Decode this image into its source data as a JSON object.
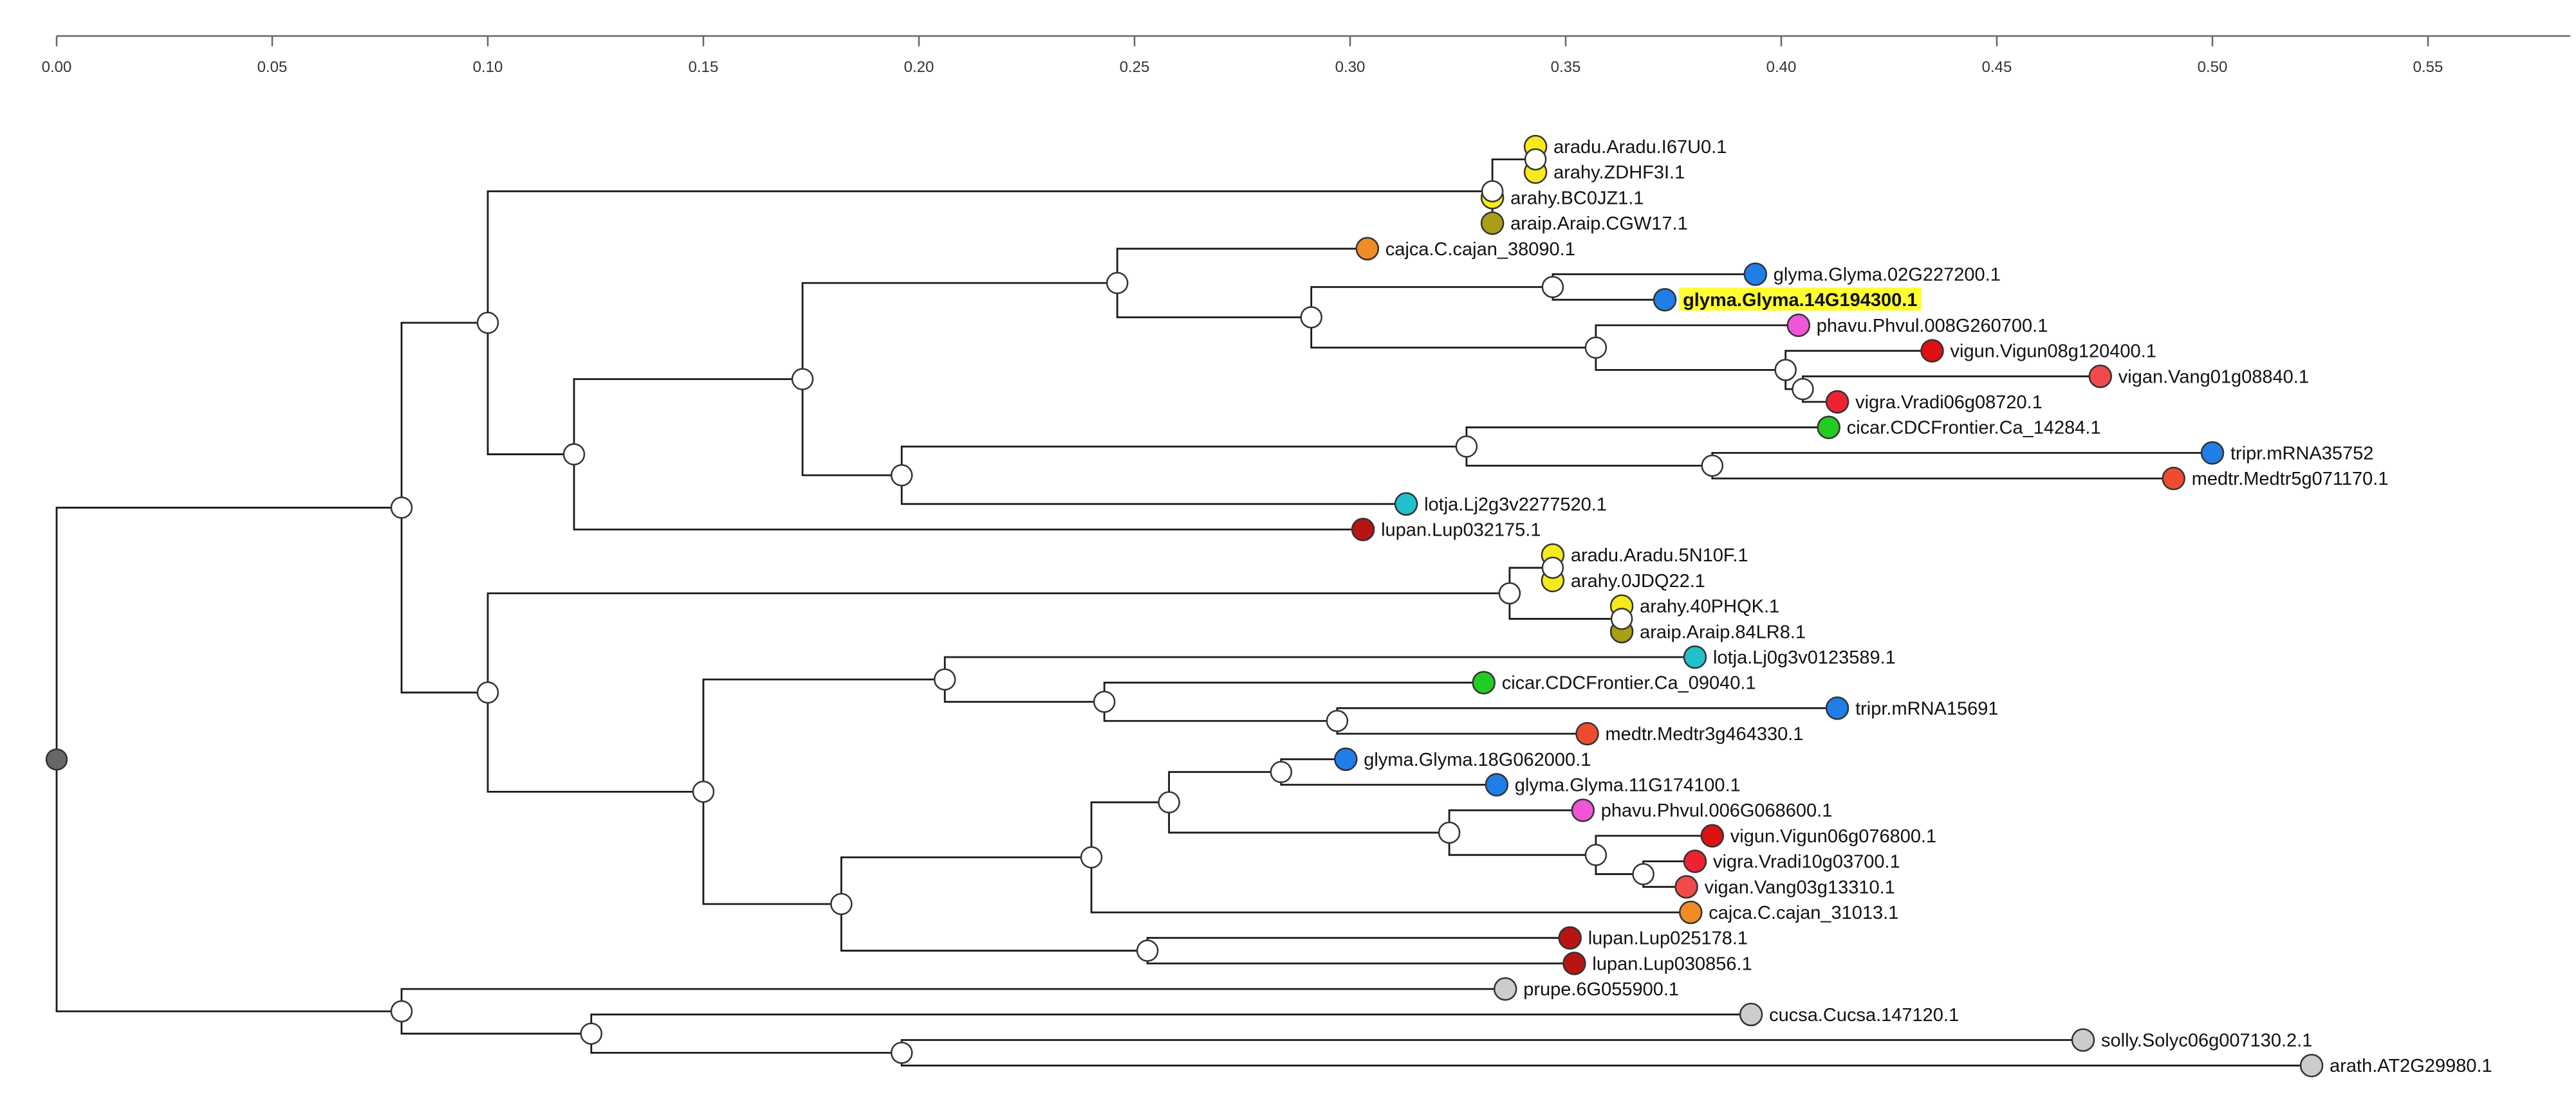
{
  "axis": {
    "ticks": [
      0.0,
      0.05,
      0.1,
      0.15,
      0.2,
      0.25,
      0.3,
      0.35,
      0.4,
      0.45,
      0.5,
      0.55
    ],
    "tick_labels": [
      "0.00",
      "0.05",
      "0.10",
      "0.15",
      "0.20",
      "0.25",
      "0.30",
      "0.35",
      "0.40",
      "0.45",
      "0.50",
      "0.55"
    ],
    "range": [
      0,
      0.58
    ]
  },
  "colors": {
    "aradu": "#f5eb1a",
    "arahy": "#f5eb1a",
    "araip": "#a89f15",
    "cajca": "#f08c24",
    "glyma": "#1f7ee8",
    "phavu": "#ee55d8",
    "vigun": "#dd1111",
    "vigan": "#f24a4a",
    "vigra": "#ee2233",
    "cicar": "#22cc22",
    "tripr": "#1f7ee8",
    "medtr": "#ee4c30",
    "lotja": "#22bfcc",
    "lupan": "#b81414",
    "outgroup": "#cccccc",
    "highlight": "#ffff33"
  },
  "tree": {
    "name": "root",
    "length": 0,
    "children": [
      {
        "name": "n-legumes",
        "length": 0.08,
        "children": [
          {
            "name": "n-cladeA",
            "length": 0.02,
            "children": [
              {
                "name": "n-arachis1",
                "length": 0.233,
                "children": [
                  {
                    "name": "n-ara1a",
                    "length": 0.01,
                    "children": [
                      {
                        "name": "aradu.Aradu.I67U0.1",
                        "length": 0.0,
                        "color": "aradu"
                      },
                      {
                        "name": "arahy.ZDHF3I.1",
                        "length": 0.0,
                        "color": "arahy"
                      }
                    ]
                  },
                  {
                    "name": "arahy.BC0JZ1.1",
                    "length": 0.0,
                    "color": "arahy"
                  },
                  {
                    "name": "araip.Araip.CGW17.1",
                    "length": 0.0,
                    "color": "araip"
                  }
                ]
              },
              {
                "name": "n-A2",
                "length": 0.02,
                "children": [
                  {
                    "name": "n-A3",
                    "length": 0.053,
                    "children": [
                      {
                        "name": "n-A4",
                        "length": 0.073,
                        "children": [
                          {
                            "name": "cajca.C.cajan_38090.1",
                            "length": 0.058,
                            "color": "cajca"
                          },
                          {
                            "name": "n-A5",
                            "length": 0.045,
                            "children": [
                              {
                                "name": "n-A6",
                                "length": 0.056,
                                "children": [
                                  {
                                    "name": "glyma.Glyma.02G227200.1",
                                    "length": 0.047,
                                    "color": "glyma"
                                  },
                                  {
                                    "name": "glyma.Glyma.14G194300.1",
                                    "length": 0.026,
                                    "color": "glyma",
                                    "highlight": true
                                  }
                                ]
                              },
                              {
                                "name": "n-A7",
                                "length": 0.066,
                                "children": [
                                  {
                                    "name": "phavu.Phvul.008G260700.1",
                                    "length": 0.047,
                                    "color": "phavu"
                                  },
                                  {
                                    "name": "n-A8",
                                    "length": 0.044,
                                    "children": [
                                      {
                                        "name": "vigun.Vigun08g120400.1",
                                        "length": 0.034,
                                        "color": "vigun"
                                      },
                                      {
                                        "name": "n-A9",
                                        "length": 0.004,
                                        "children": [
                                          {
                                            "name": "vigan.Vang01g08840.1",
                                            "length": 0.069,
                                            "color": "vigan"
                                          },
                                          {
                                            "name": "vigra.Vradi06g08720.1",
                                            "length": 0.008,
                                            "color": "vigra"
                                          }
                                        ]
                                      }
                                    ]
                                  }
                                ]
                              }
                            ]
                          }
                        ]
                      },
                      {
                        "name": "n-A10",
                        "length": 0.023,
                        "children": [
                          {
                            "name": "n-A11",
                            "length": 0.131,
                            "children": [
                              {
                                "name": "cicar.CDCFrontier.Ca_14284.1",
                                "length": 0.084,
                                "color": "cicar"
                              },
                              {
                                "name": "n-A12",
                                "length": 0.057,
                                "children": [
                                  {
                                    "name": "tripr.mRNA35752",
                                    "length": 0.116,
                                    "color": "tripr"
                                  },
                                  {
                                    "name": "medtr.Medtr5g071170.1",
                                    "length": 0.107,
                                    "color": "medtr"
                                  }
                                ]
                              }
                            ]
                          },
                          {
                            "name": "lotja.Lj2g3v2277520.1",
                            "length": 0.117,
                            "color": "lotja"
                          }
                        ]
                      }
                    ]
                  },
                  {
                    "name": "lupan.Lup032175.1",
                    "length": 0.183,
                    "color": "lupan"
                  }
                ]
              }
            ]
          },
          {
            "name": "n-cladeB",
            "length": 0.02,
            "children": [
              {
                "name": "n-B1",
                "length": 0.237,
                "children": [
                  {
                    "name": "n-B1a",
                    "length": 0.01,
                    "children": [
                      {
                        "name": "aradu.Aradu.5N10F.1",
                        "length": 0.0,
                        "color": "aradu"
                      },
                      {
                        "name": "arahy.0JDQ22.1",
                        "length": 0.0,
                        "color": "arahy"
                      }
                    ]
                  },
                  {
                    "name": "n-B1b",
                    "length": 0.026,
                    "children": [
                      {
                        "name": "arahy.40PHQK.1",
                        "length": 0.0,
                        "color": "arahy"
                      },
                      {
                        "name": "araip.Araip.84LR8.1",
                        "length": 0.0,
                        "color": "araip"
                      }
                    ]
                  }
                ]
              },
              {
                "name": "n-B2",
                "length": 0.05,
                "children": [
                  {
                    "name": "n-B3",
                    "length": 0.056,
                    "children": [
                      {
                        "name": "lotja.Lj0g3v0123589.1",
                        "length": 0.174,
                        "color": "lotja"
                      },
                      {
                        "name": "n-B4",
                        "length": 0.037,
                        "children": [
                          {
                            "name": "cicar.CDCFrontier.Ca_09040.1",
                            "length": 0.088,
                            "color": "cicar"
                          },
                          {
                            "name": "n-B5",
                            "length": 0.054,
                            "children": [
                              {
                                "name": "tripr.mRNA15691",
                                "length": 0.116,
                                "color": "tripr"
                              },
                              {
                                "name": "medtr.Medtr3g464330.1",
                                "length": 0.058,
                                "color": "medtr"
                              }
                            ]
                          }
                        ]
                      }
                    ]
                  },
                  {
                    "name": "n-B6",
                    "length": 0.032,
                    "children": [
                      {
                        "name": "n-B7",
                        "length": 0.058,
                        "children": [
                          {
                            "name": "n-B8",
                            "length": 0.018,
                            "children": [
                              {
                                "name": "n-B9",
                                "length": 0.026,
                                "children": [
                                  {
                                    "name": "glyma.Glyma.18G062000.1",
                                    "length": 0.015,
                                    "color": "glyma"
                                  },
                                  {
                                    "name": "glyma.Glyma.11G174100.1",
                                    "length": 0.05,
                                    "color": "glyma"
                                  }
                                ]
                              },
                              {
                                "name": "n-B10",
                                "length": 0.065,
                                "children": [
                                  {
                                    "name": "phavu.Phvul.006G068600.1",
                                    "length": 0.031,
                                    "color": "phavu"
                                  },
                                  {
                                    "name": "n-B11",
                                    "length": 0.034,
                                    "children": [
                                      {
                                        "name": "vigun.Vigun06g076800.1",
                                        "length": 0.027,
                                        "color": "vigun"
                                      },
                                      {
                                        "name": "n-B12",
                                        "length": 0.011,
                                        "children": [
                                          {
                                            "name": "vigra.Vradi10g03700.1",
                                            "length": 0.012,
                                            "color": "vigra"
                                          },
                                          {
                                            "name": "vigan.Vang03g13310.1",
                                            "length": 0.01,
                                            "color": "vigan"
                                          }
                                        ]
                                      }
                                    ]
                                  }
                                ]
                              }
                            ]
                          },
                          {
                            "name": "cajca.C.cajan_31013.1",
                            "length": 0.139,
                            "color": "cajca"
                          }
                        ]
                      },
                      {
                        "name": "n-B13",
                        "length": 0.071,
                        "children": [
                          {
                            "name": "lupan.Lup025178.1",
                            "length": 0.098,
                            "color": "lupan"
                          },
                          {
                            "name": "lupan.Lup030856.1",
                            "length": 0.099,
                            "color": "lupan"
                          }
                        ]
                      }
                    ]
                  }
                ]
              }
            ]
          }
        ]
      },
      {
        "name": "n-outgroup",
        "length": 0.08,
        "children": [
          {
            "name": "prupe.6G055900.1",
            "length": 0.256,
            "color": "outgroup"
          },
          {
            "name": "n-O2",
            "length": 0.044,
            "children": [
              {
                "name": "cucsa.Cucsa.147120.1",
                "length": 0.269,
                "color": "outgroup"
              },
              {
                "name": "n-O3",
                "length": 0.072,
                "children": [
                  {
                    "name": "solly.Solyc06g007130.2.1",
                    "length": 0.274,
                    "color": "outgroup"
                  },
                  {
                    "name": "arath.AT2G29980.1",
                    "length": 0.327,
                    "color": "outgroup"
                  }
                ]
              }
            ]
          }
        ]
      }
    ]
  }
}
